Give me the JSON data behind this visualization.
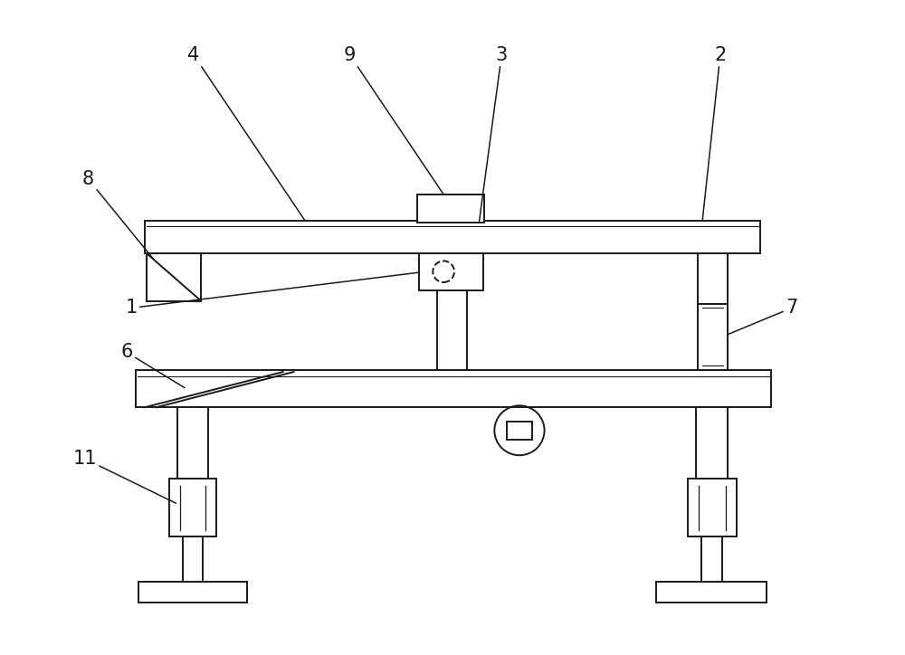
{
  "bg_color": "#ffffff",
  "line_color": "#1a1a1a",
  "lw": 1.4,
  "fig_width": 10.0,
  "fig_height": 7.24,
  "label_fontsize": 15
}
